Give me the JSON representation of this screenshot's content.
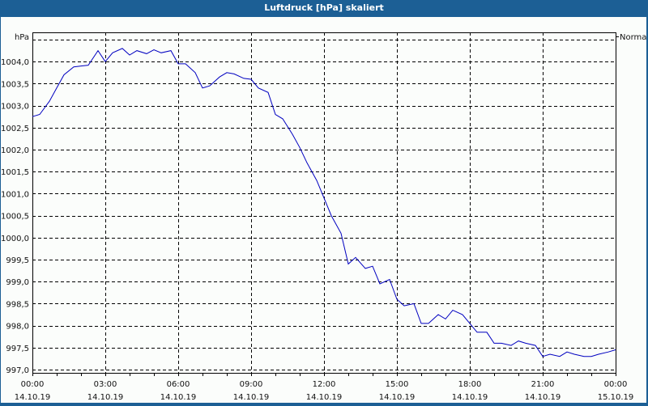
{
  "window": {
    "title": "Luftdruck [hPa] skaliert"
  },
  "chart_data": {
    "type": "line",
    "title": "Luftdruck [hPa] skaliert",
    "ylabel": "hPa",
    "legend": [
      "Normal"
    ],
    "legend_position": "top-right",
    "grid": true,
    "ylim": [
      997.0,
      1004.5
    ],
    "yticks": [
      "997,0",
      "997,5",
      "998,0",
      "998,5",
      "999,0",
      "999,5",
      "1000,0",
      "1000,5",
      "1001,0",
      "1001,5",
      "1002,0",
      "1002,5",
      "1003,0",
      "1003,5",
      "1004,0"
    ],
    "xticks": [
      {
        "time": "00:00",
        "date": "14.10.19"
      },
      {
        "time": "03:00",
        "date": "14.10.19"
      },
      {
        "time": "06:00",
        "date": "14.10.19"
      },
      {
        "time": "09:00",
        "date": "14.10.19"
      },
      {
        "time": "12:00",
        "date": "14.10.19"
      },
      {
        "time": "15:00",
        "date": "14.10.19"
      },
      {
        "time": "18:00",
        "date": "14.10.19"
      },
      {
        "time": "21:00",
        "date": "14.10.19"
      },
      {
        "time": "00:00",
        "date": "15.10.19"
      }
    ],
    "series": [
      {
        "name": "Normal",
        "color": "#0000c0",
        "x_hours": [
          0,
          0.3,
          0.7,
          1.0,
          1.3,
          1.7,
          2.0,
          2.3,
          2.7,
          3.0,
          3.3,
          3.7,
          4.0,
          4.3,
          4.7,
          5.0,
          5.3,
          5.7,
          6.0,
          6.3,
          6.7,
          7.0,
          7.3,
          7.7,
          8.0,
          8.3,
          8.7,
          9.0,
          9.3,
          9.7,
          10.0,
          10.3,
          10.7,
          11.0,
          11.3,
          11.7,
          12.0,
          12.3,
          12.7,
          13.0,
          13.3,
          13.7,
          14.0,
          14.3,
          14.7,
          15.0,
          15.3,
          15.7,
          16.0,
          16.3,
          16.7,
          17.0,
          17.3,
          17.7,
          18.0,
          18.3,
          18.7,
          19.0,
          19.3,
          19.7,
          20.0,
          20.3,
          20.7,
          21.0,
          21.3,
          21.7,
          22.0,
          22.3,
          22.7,
          23.0,
          23.3,
          23.7,
          24.0
        ],
        "values": [
          1002.75,
          1002.8,
          1003.1,
          1003.4,
          1003.7,
          1003.88,
          1003.9,
          1003.92,
          1004.25,
          1004.0,
          1004.2,
          1004.3,
          1004.15,
          1004.25,
          1004.18,
          1004.27,
          1004.2,
          1004.25,
          1003.95,
          1003.95,
          1003.75,
          1003.4,
          1003.45,
          1003.65,
          1003.75,
          1003.72,
          1003.62,
          1003.6,
          1003.4,
          1003.3,
          1002.8,
          1002.7,
          1002.35,
          1002.05,
          1001.7,
          1001.3,
          1000.9,
          1000.5,
          1000.1,
          999.4,
          999.55,
          999.3,
          999.35,
          998.95,
          999.05,
          998.6,
          998.45,
          998.5,
          998.05,
          998.05,
          998.25,
          998.15,
          998.35,
          998.25,
          998.05,
          997.85,
          997.85,
          997.6,
          997.6,
          997.55,
          997.65,
          997.6,
          997.55,
          997.3,
          997.35,
          997.3,
          997.4,
          997.35,
          997.3,
          997.3,
          997.35,
          997.4,
          997.45
        ]
      }
    ]
  }
}
